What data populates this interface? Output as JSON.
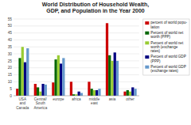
{
  "chart_data": {
    "type": "bar",
    "title": "World Distribution of Household Wealth,\nGDP, and Population in the Year 2000",
    "categories": [
      "USA\nand\nCanada",
      "Central/\nSouth\nAmerica",
      "europe",
      "africa",
      "middle\neast",
      "asia",
      "other"
    ],
    "series": [
      {
        "name": "percent of world popu-\nlation",
        "color": "#cc0000",
        "values": [
          5,
          8.5,
          9.5,
          10,
          10,
          52,
          3
        ]
      },
      {
        "name": "Percent of world net\nworth (PPP)",
        "color": "#006600",
        "values": [
          27,
          6,
          26,
          1,
          5,
          29,
          4
        ]
      },
      {
        "name": "Percent of world net\nworth (exchange\nrates)",
        "color": "#99cc33",
        "values": [
          35,
          3,
          29,
          1,
          4,
          25,
          3
        ]
      },
      {
        "name": "Percent of world GDP\n(PPP)",
        "color": "#000080",
        "values": [
          24,
          8.5,
          23,
          3,
          4,
          31,
          6
        ]
      },
      {
        "name": "Percent of world GDP\n(exchange rates)",
        "color": "#6699cc",
        "values": [
          34,
          8,
          27,
          2,
          5,
          25,
          5
        ]
      }
    ],
    "ylim": [
      0,
      55
    ],
    "yticks": [
      0,
      5,
      10,
      15,
      20,
      25,
      30,
      35,
      40,
      45,
      50,
      55
    ],
    "grid": true,
    "legend": "right"
  }
}
